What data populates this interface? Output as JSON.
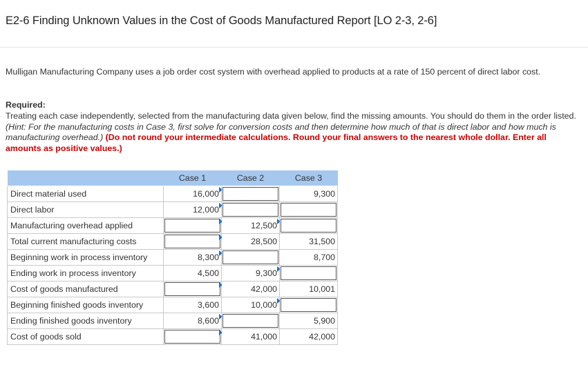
{
  "title": "E2-6 Finding Unknown Values in the Cost of Goods Manufactured Report [LO 2-3, 2-6]",
  "intro": "Mulligan Manufacturing Company uses a job order cost system with overhead applied to products at a rate of 150 percent of direct labor cost.",
  "required": {
    "heading": "Required:",
    "text_plain": "Treating each case independently, selected from the manufacturing data given below, find the missing amounts. You should do them in the order listed. ",
    "hint": "(Hint: For the manufacturing costs in Case 3, first solve for conversion costs and then determine how much of that is direct labor and how much is manufacturing overhead.)",
    "instruction": " (Do not round your intermediate calculations. Round your final answers to the nearest whole dollar. Enter all amounts as positive values.)"
  },
  "table": {
    "columns": [
      "Case 1",
      "Case 2",
      "Case 3"
    ],
    "rows": [
      {
        "label": "Direct material used",
        "cells": [
          {
            "value": "16,000",
            "input": false,
            "flag": true
          },
          {
            "value": "",
            "input": true,
            "flag": false
          },
          {
            "value": "9,300",
            "input": false,
            "flag": false
          }
        ]
      },
      {
        "label": "Direct labor",
        "cells": [
          {
            "value": "12,000",
            "input": false,
            "flag": true
          },
          {
            "value": "",
            "input": true,
            "flag": false
          },
          {
            "value": "",
            "input": true,
            "flag": false
          }
        ]
      },
      {
        "label": "Manufacturing overhead applied",
        "cells": [
          {
            "value": "",
            "input": true,
            "flag": true
          },
          {
            "value": "12,500",
            "input": false,
            "flag": true
          },
          {
            "value": "",
            "input": true,
            "flag": false
          }
        ]
      },
      {
        "label": "Total current manufacturing costs",
        "cells": [
          {
            "value": "",
            "input": true,
            "flag": true
          },
          {
            "value": "28,500",
            "input": false,
            "flag": false
          },
          {
            "value": "31,500",
            "input": false,
            "flag": false
          }
        ]
      },
      {
        "label": "Beginning work in process inventory",
        "cells": [
          {
            "value": "8,300",
            "input": false,
            "flag": true
          },
          {
            "value": "",
            "input": true,
            "flag": false
          },
          {
            "value": "8,700",
            "input": false,
            "flag": false
          }
        ]
      },
      {
        "label": "Ending work in process inventory",
        "cells": [
          {
            "value": "4,500",
            "input": false,
            "flag": false
          },
          {
            "value": "9,300",
            "input": false,
            "flag": true
          },
          {
            "value": "",
            "input": true,
            "flag": false
          }
        ]
      },
      {
        "label": "Cost of goods manufactured",
        "cells": [
          {
            "value": "",
            "input": true,
            "flag": true
          },
          {
            "value": "42,000",
            "input": false,
            "flag": false
          },
          {
            "value": "10,001",
            "input": false,
            "flag": false
          }
        ]
      },
      {
        "label": "Beginning finished goods inventory",
        "cells": [
          {
            "value": "3,600",
            "input": false,
            "flag": false
          },
          {
            "value": "10,000",
            "input": false,
            "flag": true
          },
          {
            "value": "",
            "input": true,
            "flag": false
          }
        ]
      },
      {
        "label": "Ending finished goods inventory",
        "cells": [
          {
            "value": "8,600",
            "input": false,
            "flag": true
          },
          {
            "value": "",
            "input": true,
            "flag": false
          },
          {
            "value": "5,900",
            "input": false,
            "flag": false
          }
        ]
      },
      {
        "label": "Cost of goods sold",
        "cells": [
          {
            "value": "",
            "input": true,
            "flag": true
          },
          {
            "value": "41,000",
            "input": false,
            "flag": false
          },
          {
            "value": "42,000",
            "input": false,
            "flag": false
          }
        ]
      }
    ]
  },
  "colors": {
    "header_bg": "#a6c8ee",
    "instruction_red": "#cc0000",
    "flag_blue": "#1a6fd6"
  }
}
